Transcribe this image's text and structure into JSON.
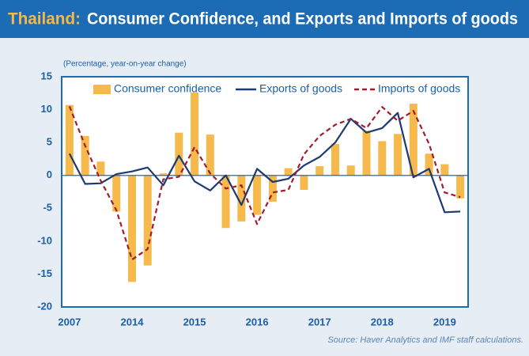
{
  "chart_data": {
    "type": "bar_line",
    "title_highlight": "Thailand:",
    "title": "Consumer Confidence, and Exports and Imports of goods",
    "subtitle": "(Percentage, year-on-year change)",
    "source": "Source: Haver Analytics and IMF staff calculations.",
    "categories": [
      "2007",
      null,
      null,
      null,
      "2014",
      null,
      null,
      null,
      "2015",
      null,
      null,
      null,
      "2016",
      null,
      null,
      null,
      "2017",
      null,
      null,
      null,
      "2018",
      null,
      null,
      null,
      "2019",
      null
    ],
    "series": [
      {
        "name": "Consumer confidence",
        "kind": "bar",
        "color": "#f6b94c",
        "values": [
          10.7,
          6.0,
          2.1,
          -5.5,
          -16.2,
          -13.7,
          0.3,
          6.5,
          12.6,
          6.2,
          -8.0,
          -7.0,
          -6.0,
          -4.0,
          1.1,
          -2.2,
          1.4,
          4.8,
          1.5,
          6.8,
          5.2,
          6.3,
          10.9,
          3.3,
          1.7,
          -3.5
        ]
      },
      {
        "name": "Exports of goods",
        "kind": "line",
        "color": "#1c3a73",
        "values": [
          3.3,
          -1.3,
          -1.2,
          0.2,
          0.6,
          1.2,
          -1.5,
          3.0,
          -0.9,
          -2.3,
          0.0,
          -4.5,
          1.0,
          -1.0,
          -0.5,
          1.5,
          2.8,
          5.0,
          8.6,
          6.5,
          7.2,
          9.5,
          -0.3,
          1.0,
          -5.6,
          -5.5
        ]
      },
      {
        "name": "Imports of goods",
        "kind": "dashed",
        "color": "#a11d2e",
        "values": [
          10.5,
          4.5,
          -0.8,
          -5.3,
          -12.8,
          -11.2,
          -0.6,
          -0.2,
          4.3,
          0.3,
          -2.0,
          -1.5,
          -7.4,
          -2.6,
          -2.2,
          3.2,
          6.0,
          7.7,
          8.6,
          7.2,
          10.4,
          8.3,
          9.8,
          4.8,
          -2.6,
          -3.3
        ]
      }
    ],
    "ylim": [
      -20,
      15
    ],
    "yticks": [
      -20,
      -15,
      -10,
      -5,
      0,
      5,
      10,
      15
    ],
    "grid": false
  }
}
